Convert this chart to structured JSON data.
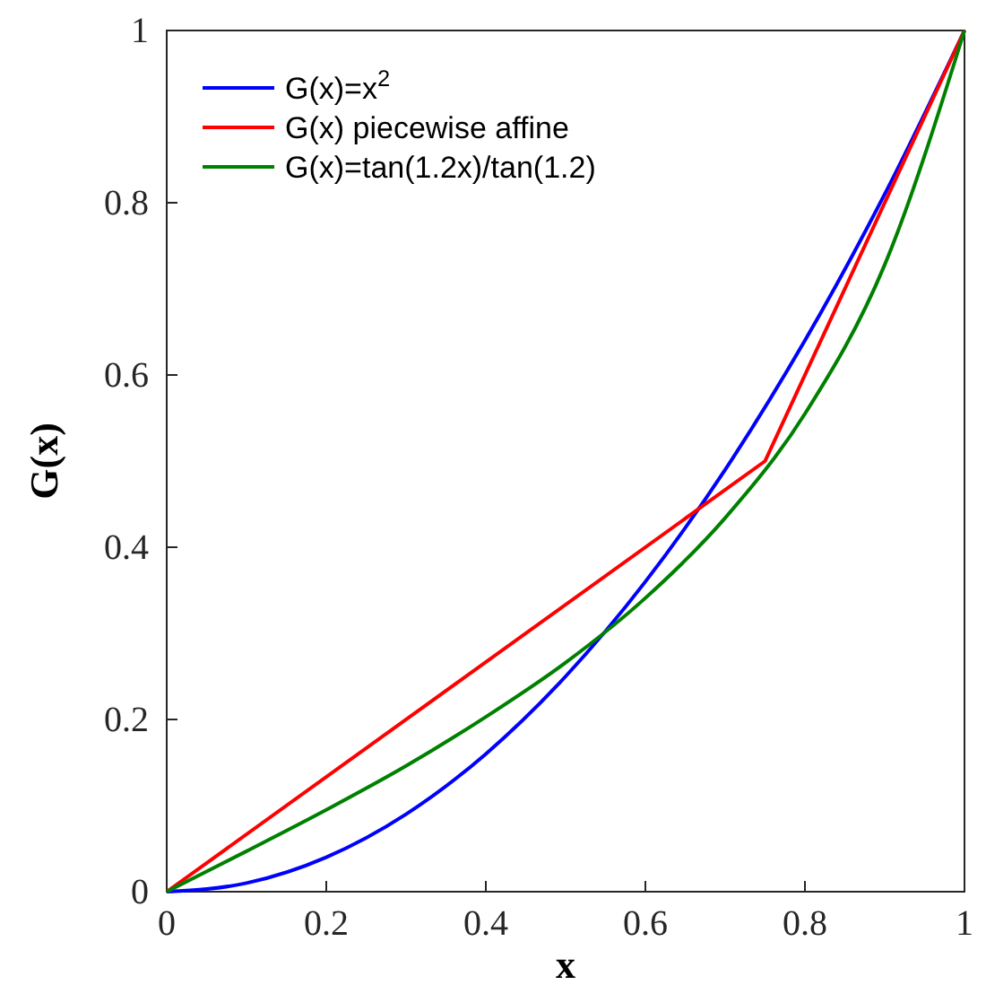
{
  "chart_data": {
    "type": "line",
    "xlabel": "x",
    "ylabel": "G(x)",
    "xlim": [
      0,
      1
    ],
    "ylim": [
      0,
      1
    ],
    "xticks": [
      0,
      0.2,
      0.4,
      0.6,
      0.8,
      1
    ],
    "yticks": [
      0,
      0.2,
      0.4,
      0.6,
      0.8,
      1
    ],
    "grid": false,
    "legend": "top left",
    "line_style": "solid",
    "marker": "none",
    "series": [
      {
        "name": "G(x)=x$^{2}$",
        "color": "#0000ff",
        "x": [
          0,
          0.1,
          0.2,
          0.3,
          0.4,
          0.5,
          0.6,
          0.7,
          0.8,
          0.9,
          1
        ],
        "values": [
          0,
          0.01,
          0.04,
          0.09,
          0.16,
          0.25,
          0.36,
          0.49,
          0.64,
          0.81,
          1
        ]
      },
      {
        "name": "G(x) piecewise affine",
        "color": "#ff0000",
        "x": [
          0,
          0.75,
          1
        ],
        "values": [
          0,
          0.5,
          1
        ]
      },
      {
        "name": "G(x)=tan(1.2x)/tan(1.2)",
        "color": "#008000",
        "x": [
          0,
          0.1,
          0.2,
          0.3,
          0.4,
          0.5,
          0.6,
          0.7,
          0.8,
          0.9,
          1
        ],
        "values": [
          0,
          0.047,
          0.095,
          0.146,
          0.203,
          0.266,
          0.341,
          0.434,
          0.555,
          0.728,
          1
        ]
      }
    ]
  }
}
